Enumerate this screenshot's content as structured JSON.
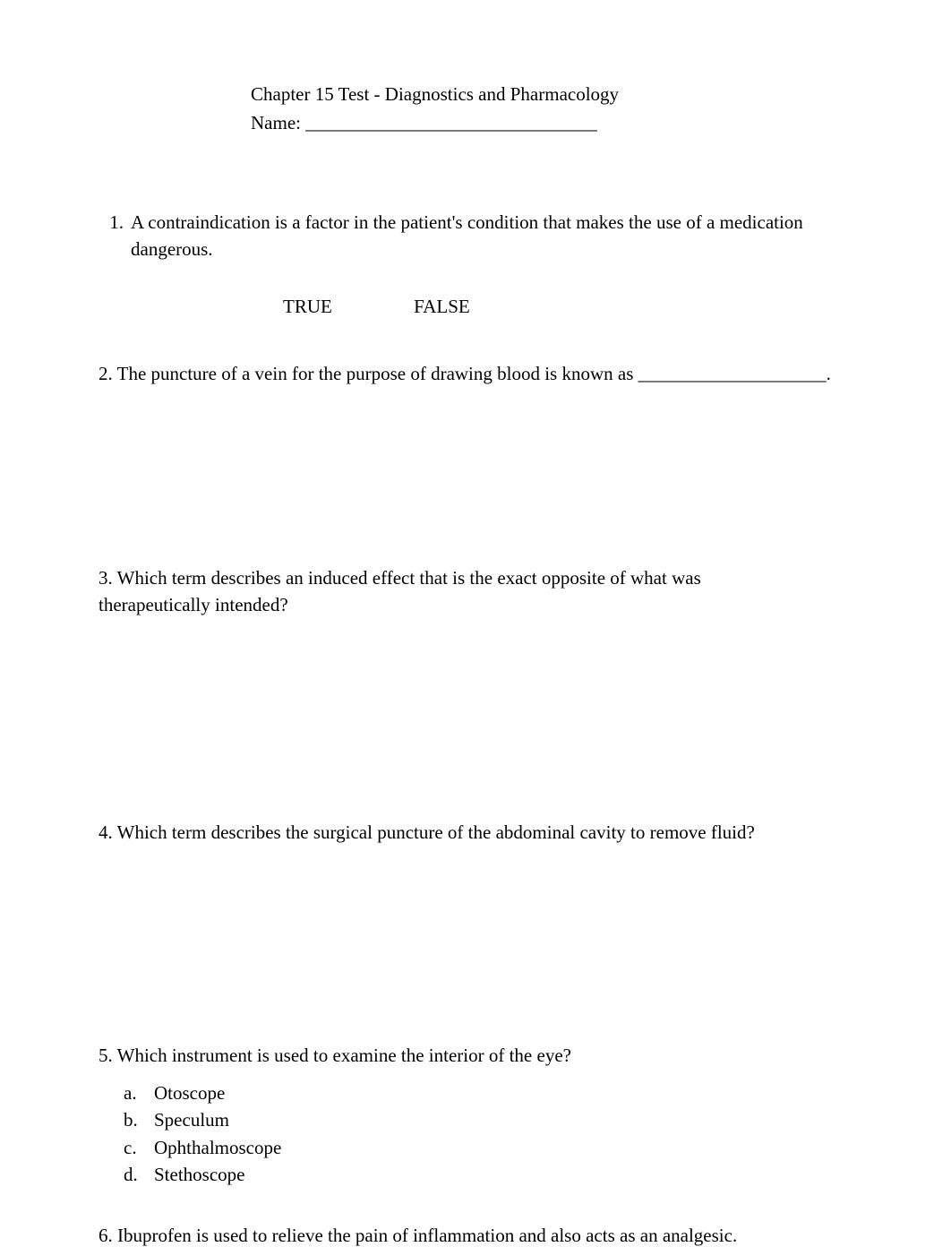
{
  "header": {
    "title": "Chapter 15 Test - Diagnostics and Pharmacology",
    "name_label": "Name: _______________________________"
  },
  "q1": {
    "number": "1.",
    "text": "A contraindication is a factor in the patient's condition that makes the use of a medication dangerous.",
    "true_label": "TRUE",
    "false_label": "FALSE"
  },
  "q2": {
    "text": "2. The puncture of a vein for the purpose of drawing blood is known as ____________________."
  },
  "q3": {
    "line1": "3. Which term describes an induced effect that is the exact opposite of what was",
    "line2": "therapeutically intended?"
  },
  "q4": {
    "text": "4. Which term describes the surgical puncture of the abdominal cavity to remove fluid?"
  },
  "q5": {
    "stem": "5. Which instrument is used to examine the interior of the eye?",
    "options": [
      {
        "letter": "a.",
        "text": "Otoscope"
      },
      {
        "letter": "b.",
        "text": "Speculum"
      },
      {
        "letter": "c.",
        "text": "Ophthalmoscope"
      },
      {
        "letter": "d.",
        "text": "Stethoscope"
      }
    ]
  },
  "q6": {
    "text": "6.  Ibuprofen is used to relieve the pain of inflammation and also acts as an analgesic."
  }
}
